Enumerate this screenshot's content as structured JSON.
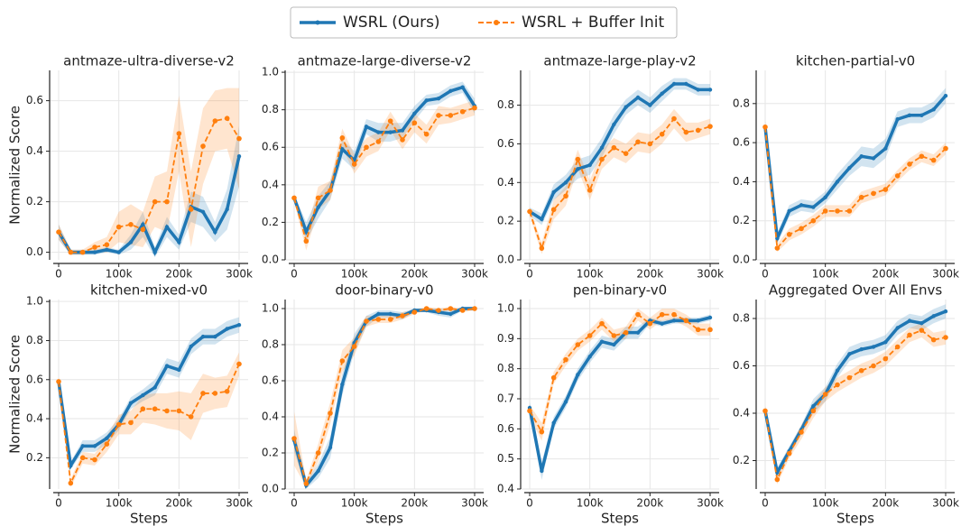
{
  "chart_data": [
    {
      "type": "line",
      "title": "antmaze-ultra-diverse-v2",
      "ylabel": "Normalized Score",
      "x": [
        0,
        20000,
        40000,
        60000,
        80000,
        100000,
        120000,
        140000,
        160000,
        180000,
        200000,
        220000,
        240000,
        260000,
        280000,
        300000
      ],
      "xlim": [
        -15000,
        315000
      ],
      "xticks": [
        0,
        {
          "value": 100000,
          "label": "100k"
        },
        {
          "value": 200000,
          "label": "200k"
        },
        {
          "value": 300000,
          "label": "300k"
        }
      ],
      "ylim": [
        -0.03,
        0.72
      ],
      "yticks": [
        {
          "value": 0,
          "label": "0.0"
        },
        0.2,
        0.4,
        0.6
      ],
      "grid": true,
      "series": [
        {
          "name": "WSRL (Ours)",
          "color": "#1f77b4",
          "values": [
            0.08,
            0.0,
            0.0,
            0.0,
            0.01,
            0.0,
            0.04,
            0.11,
            0.0,
            0.1,
            0.04,
            0.18,
            0.16,
            0.08,
            0.17,
            0.38
          ],
          "errors": [
            0.03,
            0.01,
            0.01,
            0.01,
            0.01,
            0.01,
            0.03,
            0.05,
            0.02,
            0.04,
            0.03,
            0.06,
            0.06,
            0.04,
            0.08,
            0.12
          ]
        },
        {
          "name": "WSRL + Buffer Init",
          "color": "#ff7f0e",
          "values": [
            0.08,
            0.0,
            0.0,
            0.02,
            0.03,
            0.1,
            0.11,
            0.09,
            0.2,
            0.2,
            0.47,
            0.17,
            0.42,
            0.52,
            0.53,
            0.45
          ],
          "errors": [
            0.03,
            0.01,
            0.01,
            0.02,
            0.03,
            0.06,
            0.08,
            0.07,
            0.1,
            0.12,
            0.15,
            0.15,
            0.15,
            0.12,
            0.12,
            0.2
          ]
        }
      ]
    },
    {
      "type": "line",
      "title": "antmaze-large-diverse-v2",
      "x": [
        0,
        20000,
        40000,
        60000,
        80000,
        100000,
        120000,
        140000,
        160000,
        180000,
        200000,
        220000,
        240000,
        260000,
        280000,
        300000
      ],
      "xlim": [
        -15000,
        315000
      ],
      "xticks": [
        0,
        {
          "value": 100000,
          "label": "100k"
        },
        {
          "value": 200000,
          "label": "200k"
        },
        {
          "value": 300000,
          "label": "300k"
        }
      ],
      "ylim": [
        0,
        1.01
      ],
      "yticks": [
        {
          "value": 0,
          "label": "0.0"
        },
        0.2,
        0.4,
        0.6,
        0.8,
        {
          "value": 1,
          "label": "1.0"
        }
      ],
      "grid": true,
      "series": [
        {
          "name": "WSRL (Ours)",
          "color": "#1f77b4",
          "values": [
            0.33,
            0.15,
            0.28,
            0.37,
            0.59,
            0.53,
            0.71,
            0.68,
            0.68,
            0.69,
            0.78,
            0.85,
            0.86,
            0.9,
            0.92,
            0.82
          ],
          "errors": [
            0.02,
            0.05,
            0.06,
            0.05,
            0.05,
            0.05,
            0.04,
            0.05,
            0.05,
            0.04,
            0.04,
            0.03,
            0.03,
            0.03,
            0.03,
            0.04
          ]
        },
        {
          "name": "WSRL + Buffer Init",
          "color": "#ff7f0e",
          "values": [
            0.33,
            0.1,
            0.33,
            0.37,
            0.65,
            0.51,
            0.6,
            0.63,
            0.74,
            0.64,
            0.73,
            0.67,
            0.77,
            0.77,
            0.79,
            0.81
          ],
          "errors": [
            0.02,
            0.05,
            0.06,
            0.05,
            0.05,
            0.05,
            0.05,
            0.05,
            0.05,
            0.05,
            0.05,
            0.05,
            0.05,
            0.04,
            0.04,
            0.04
          ]
        }
      ]
    },
    {
      "type": "line",
      "title": "antmaze-large-play-v2",
      "x": [
        0,
        20000,
        40000,
        60000,
        80000,
        100000,
        120000,
        140000,
        160000,
        180000,
        200000,
        220000,
        240000,
        260000,
        280000,
        300000
      ],
      "xlim": [
        -15000,
        315000
      ],
      "xticks": [
        0,
        {
          "value": 100000,
          "label": "100k"
        },
        {
          "value": 200000,
          "label": "200k"
        },
        {
          "value": 300000,
          "label": "300k"
        }
      ],
      "ylim": [
        0,
        0.98
      ],
      "yticks": [
        {
          "value": 0,
          "label": "0.0"
        },
        0.2,
        0.4,
        0.6,
        0.8
      ],
      "grid": true,
      "series": [
        {
          "name": "WSRL (Ours)",
          "color": "#1f77b4",
          "values": [
            0.25,
            0.21,
            0.35,
            0.4,
            0.47,
            0.49,
            0.58,
            0.7,
            0.79,
            0.84,
            0.8,
            0.86,
            0.91,
            0.91,
            0.88,
            0.88
          ],
          "errors": [
            0.02,
            0.03,
            0.04,
            0.04,
            0.05,
            0.05,
            0.05,
            0.05,
            0.04,
            0.04,
            0.04,
            0.04,
            0.03,
            0.03,
            0.03,
            0.03
          ]
        },
        {
          "name": "WSRL + Buffer Init",
          "color": "#ff7f0e",
          "values": [
            0.25,
            0.06,
            0.26,
            0.33,
            0.52,
            0.36,
            0.52,
            0.58,
            0.55,
            0.61,
            0.6,
            0.65,
            0.73,
            0.66,
            0.67,
            0.69
          ],
          "errors": [
            0.02,
            0.03,
            0.05,
            0.05,
            0.05,
            0.05,
            0.05,
            0.05,
            0.05,
            0.05,
            0.05,
            0.05,
            0.05,
            0.05,
            0.04,
            0.04
          ]
        }
      ]
    },
    {
      "type": "line",
      "title": "kitchen-partial-v0",
      "x": [
        0,
        20000,
        40000,
        60000,
        80000,
        100000,
        120000,
        140000,
        160000,
        180000,
        200000,
        220000,
        240000,
        260000,
        280000,
        300000
      ],
      "xlim": [
        -15000,
        315000
      ],
      "xticks": [
        0,
        {
          "value": 100000,
          "label": "100k"
        },
        {
          "value": 200000,
          "label": "200k"
        },
        {
          "value": 300000,
          "label": "300k"
        }
      ],
      "ylim": [
        0,
        0.97
      ],
      "yticks": [
        {
          "value": 0,
          "label": "0.0"
        },
        0.2,
        0.4,
        0.6,
        0.8
      ],
      "grid": true,
      "series": [
        {
          "name": "WSRL (Ours)",
          "color": "#1f77b4",
          "values": [
            0.68,
            0.11,
            0.25,
            0.28,
            0.27,
            0.32,
            0.4,
            0.47,
            0.53,
            0.52,
            0.57,
            0.72,
            0.74,
            0.74,
            0.77,
            0.84
          ],
          "errors": [
            0.03,
            0.03,
            0.03,
            0.03,
            0.03,
            0.03,
            0.04,
            0.04,
            0.05,
            0.05,
            0.05,
            0.04,
            0.04,
            0.04,
            0.04,
            0.04
          ]
        },
        {
          "name": "WSRL + Buffer Init",
          "color": "#ff7f0e",
          "values": [
            0.68,
            0.06,
            0.13,
            0.16,
            0.2,
            0.25,
            0.25,
            0.25,
            0.32,
            0.34,
            0.36,
            0.43,
            0.49,
            0.53,
            0.51,
            0.57
          ],
          "errors": [
            0.03,
            0.02,
            0.03,
            0.03,
            0.03,
            0.03,
            0.03,
            0.03,
            0.03,
            0.03,
            0.03,
            0.03,
            0.03,
            0.03,
            0.03,
            0.03
          ]
        }
      ]
    },
    {
      "type": "line",
      "title": "kitchen-mixed-v0",
      "ylabel": "Normalized Score",
      "xlabel": "Steps",
      "x": [
        0,
        20000,
        40000,
        60000,
        80000,
        100000,
        120000,
        140000,
        160000,
        180000,
        200000,
        220000,
        240000,
        260000,
        280000,
        300000
      ],
      "xlim": [
        -15000,
        315000
      ],
      "xticks": [
        0,
        {
          "value": 100000,
          "label": "100k"
        },
        {
          "value": 200000,
          "label": "200k"
        },
        {
          "value": 300000,
          "label": "300k"
        }
      ],
      "ylim": [
        0.04,
        1.01
      ],
      "yticks": [
        0.2,
        0.4,
        0.6,
        0.8,
        {
          "value": 1,
          "label": "1.0"
        }
      ],
      "grid": true,
      "series": [
        {
          "name": "WSRL (Ours)",
          "color": "#1f77b4",
          "values": [
            0.59,
            0.16,
            0.26,
            0.26,
            0.3,
            0.37,
            0.48,
            0.52,
            0.56,
            0.67,
            0.65,
            0.77,
            0.82,
            0.82,
            0.86,
            0.88
          ],
          "errors": [
            0.02,
            0.02,
            0.03,
            0.03,
            0.03,
            0.03,
            0.03,
            0.03,
            0.04,
            0.04,
            0.04,
            0.04,
            0.04,
            0.04,
            0.04,
            0.04
          ]
        },
        {
          "name": "WSRL + Buffer Init",
          "color": "#ff7f0e",
          "values": [
            0.59,
            0.07,
            0.2,
            0.19,
            0.27,
            0.37,
            0.38,
            0.45,
            0.45,
            0.44,
            0.44,
            0.41,
            0.53,
            0.53,
            0.54,
            0.68
          ],
          "errors": [
            0.02,
            0.02,
            0.03,
            0.03,
            0.04,
            0.05,
            0.06,
            0.07,
            0.08,
            0.09,
            0.1,
            0.12,
            0.1,
            0.08,
            0.08,
            0.06
          ]
        }
      ]
    },
    {
      "type": "line",
      "title": "door-binary-v0",
      "xlabel": "Steps",
      "x": [
        0,
        20000,
        40000,
        60000,
        80000,
        100000,
        120000,
        140000,
        160000,
        180000,
        200000,
        220000,
        240000,
        260000,
        280000,
        300000
      ],
      "xlim": [
        -15000,
        315000
      ],
      "xticks": [
        0,
        {
          "value": 100000,
          "label": "100k"
        },
        {
          "value": 200000,
          "label": "200k"
        },
        {
          "value": 300000,
          "label": "300k"
        }
      ],
      "ylim": [
        0,
        1.05
      ],
      "yticks": [
        {
          "value": 0,
          "label": "0.0"
        },
        0.2,
        0.4,
        0.6,
        0.8,
        {
          "value": 1,
          "label": "1.0"
        }
      ],
      "grid": true,
      "series": [
        {
          "name": "WSRL (Ours)",
          "color": "#1f77b4",
          "values": [
            0.27,
            0.02,
            0.1,
            0.23,
            0.58,
            0.81,
            0.93,
            0.97,
            0.97,
            0.96,
            0.99,
            0.99,
            0.98,
            0.97,
            1.0,
            1.0
          ],
          "errors": [
            0.06,
            0.02,
            0.04,
            0.06,
            0.06,
            0.05,
            0.03,
            0.02,
            0.02,
            0.02,
            0.01,
            0.01,
            0.02,
            0.02,
            0.01,
            0.01
          ]
        },
        {
          "name": "WSRL + Buffer Init",
          "color": "#ff7f0e",
          "values": [
            0.28,
            0.03,
            0.2,
            0.42,
            0.71,
            0.79,
            0.93,
            0.94,
            0.94,
            0.96,
            0.98,
            1.0,
            0.99,
            1.0,
            0.99,
            1.0
          ],
          "errors": [
            0.15,
            0.02,
            0.05,
            0.06,
            0.06,
            0.05,
            0.03,
            0.02,
            0.02,
            0.02,
            0.01,
            0.01,
            0.01,
            0.01,
            0.01,
            0.01
          ]
        }
      ]
    },
    {
      "type": "line",
      "title": "pen-binary-v0",
      "xlabel": "Steps",
      "x": [
        0,
        20000,
        40000,
        60000,
        80000,
        100000,
        120000,
        140000,
        160000,
        180000,
        200000,
        220000,
        240000,
        260000,
        280000,
        300000
      ],
      "xlim": [
        -15000,
        315000
      ],
      "xticks": [
        0,
        {
          "value": 100000,
          "label": "100k"
        },
        {
          "value": 200000,
          "label": "200k"
        },
        {
          "value": 300000,
          "label": "300k"
        }
      ],
      "ylim": [
        0.4,
        1.03
      ],
      "yticks": [
        0.4,
        0.5,
        0.6,
        0.7,
        0.8,
        0.9,
        {
          "value": 1,
          "label": "1.0"
        }
      ],
      "grid": true,
      "series": [
        {
          "name": "WSRL (Ours)",
          "color": "#1f77b4",
          "values": [
            0.67,
            0.46,
            0.62,
            0.69,
            0.78,
            0.84,
            0.89,
            0.88,
            0.92,
            0.92,
            0.96,
            0.95,
            0.96,
            0.96,
            0.96,
            0.97
          ],
          "errors": [
            0.02,
            0.03,
            0.02,
            0.02,
            0.02,
            0.02,
            0.02,
            0.02,
            0.02,
            0.02,
            0.01,
            0.01,
            0.01,
            0.01,
            0.01,
            0.01
          ]
        },
        {
          "name": "WSRL + Buffer Init",
          "color": "#ff7f0e",
          "values": [
            0.66,
            0.59,
            0.77,
            0.83,
            0.88,
            0.91,
            0.95,
            0.91,
            0.92,
            0.98,
            0.95,
            0.98,
            0.98,
            0.96,
            0.93,
            0.93
          ],
          "errors": [
            0.02,
            0.03,
            0.02,
            0.02,
            0.02,
            0.02,
            0.02,
            0.02,
            0.02,
            0.02,
            0.02,
            0.02,
            0.02,
            0.02,
            0.02,
            0.02
          ]
        }
      ]
    },
    {
      "type": "line",
      "title": "Aggregated Over All Envs",
      "xlabel": "Steps",
      "x": [
        0,
        20000,
        40000,
        60000,
        80000,
        100000,
        120000,
        140000,
        160000,
        180000,
        200000,
        220000,
        240000,
        260000,
        280000,
        300000
      ],
      "xlim": [
        -15000,
        315000
      ],
      "xticks": [
        0,
        {
          "value": 100000,
          "label": "100k"
        },
        {
          "value": 200000,
          "label": "200k"
        },
        {
          "value": 300000,
          "label": "300k"
        }
      ],
      "ylim": [
        0.08,
        0.88
      ],
      "yticks": [
        0.2,
        0.4,
        0.6,
        0.8
      ],
      "grid": true,
      "series": [
        {
          "name": "WSRL (Ours)",
          "color": "#1f77b4",
          "values": [
            0.41,
            0.15,
            0.24,
            0.33,
            0.43,
            0.48,
            0.58,
            0.65,
            0.67,
            0.68,
            0.7,
            0.76,
            0.79,
            0.78,
            0.81,
            0.83
          ],
          "errors": [
            0.02,
            0.02,
            0.02,
            0.02,
            0.03,
            0.03,
            0.03,
            0.03,
            0.03,
            0.03,
            0.03,
            0.03,
            0.03,
            0.03,
            0.03,
            0.03
          ]
        },
        {
          "name": "WSRL + Buffer Init",
          "color": "#ff7f0e",
          "values": [
            0.41,
            0.12,
            0.23,
            0.32,
            0.41,
            0.48,
            0.52,
            0.55,
            0.58,
            0.6,
            0.63,
            0.68,
            0.73,
            0.75,
            0.71,
            0.72
          ],
          "errors": [
            0.02,
            0.02,
            0.02,
            0.03,
            0.03,
            0.03,
            0.03,
            0.03,
            0.03,
            0.03,
            0.03,
            0.03,
            0.03,
            0.03,
            0.03,
            0.03
          ]
        }
      ]
    }
  ]
}
